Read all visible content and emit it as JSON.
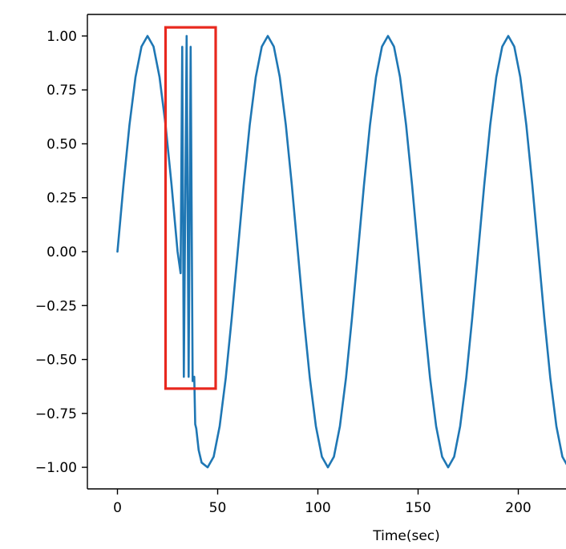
{
  "chart_data": {
    "type": "line",
    "title": "",
    "xlabel": "Time(sec)",
    "ylabel": "",
    "xlim": [
      -15,
      233
    ],
    "ylim": [
      -1.1,
      1.1
    ],
    "grid": false,
    "legend": "none",
    "x_ticks": [
      0,
      50,
      100,
      150,
      200
    ],
    "x_tick_labels": [
      "0",
      "50",
      "100",
      "150",
      "200"
    ],
    "y_ticks": [
      1.0,
      0.75,
      0.5,
      0.25,
      0.0,
      -0.25,
      -0.5,
      -0.75,
      -1.0
    ],
    "y_tick_labels": [
      "1.00",
      "0.75",
      "0.50",
      "0.25",
      "0.00",
      "−0.25",
      "−0.50",
      "−0.75",
      "−1.00"
    ],
    "series": [
      {
        "color": "#1f77b4",
        "x": [
          0,
          3,
          6,
          9,
          12,
          15,
          18,
          21,
          24,
          27,
          30,
          31.5,
          32.3,
          33.1,
          34.5,
          35.5,
          36.5,
          37.5,
          38.3,
          38.8,
          39.3,
          40.5,
          42,
          45,
          48,
          51,
          54,
          57,
          60,
          63,
          66,
          69,
          72,
          75,
          78,
          81,
          84,
          87,
          90,
          93,
          96,
          99,
          102,
          105,
          108,
          111,
          114,
          117,
          120,
          123,
          126,
          129,
          132,
          135,
          138,
          141,
          144,
          147,
          150,
          153,
          156,
          159,
          162,
          165,
          168,
          171,
          174,
          177,
          180,
          183,
          186,
          189,
          192,
          195,
          198,
          201,
          204,
          207,
          210,
          213,
          216,
          219,
          222,
          225,
          228,
          231,
          233
        ],
        "y": [
          0.0,
          0.309,
          0.588,
          0.809,
          0.951,
          1.0,
          0.951,
          0.809,
          0.588,
          0.309,
          0.0,
          -0.1,
          0.95,
          -0.58,
          1.0,
          -0.58,
          0.95,
          -0.6,
          -0.58,
          -0.8,
          -0.82,
          -0.92,
          -0.978,
          -1.0,
          -0.951,
          -0.809,
          -0.588,
          -0.309,
          0.0,
          0.309,
          0.588,
          0.809,
          0.951,
          1.0,
          0.951,
          0.809,
          0.588,
          0.309,
          0.0,
          -0.309,
          -0.588,
          -0.809,
          -0.951,
          -1.0,
          -0.951,
          -0.809,
          -0.588,
          -0.309,
          0.0,
          0.309,
          0.588,
          0.809,
          0.951,
          1.0,
          0.951,
          0.809,
          0.588,
          0.309,
          0.0,
          -0.309,
          -0.588,
          -0.809,
          -0.951,
          -1.0,
          -0.951,
          -0.809,
          -0.588,
          -0.309,
          0.0,
          0.309,
          0.588,
          0.809,
          0.951,
          1.0,
          0.951,
          0.809,
          0.588,
          0.309,
          0.0,
          -0.309,
          -0.588,
          -0.809,
          -0.951,
          -1.0,
          -0.951,
          -0.809,
          -0.588
        ]
      }
    ],
    "annotations": [
      {
        "type": "rectangle",
        "color": "#e8281e",
        "x0": 24,
        "x1": 49,
        "y0": -0.635,
        "y1": 1.04
      }
    ]
  }
}
